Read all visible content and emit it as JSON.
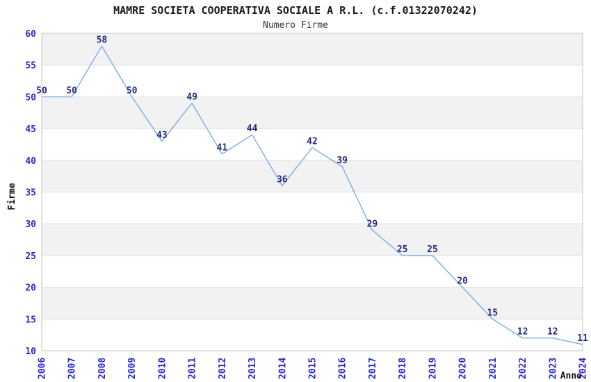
{
  "header": {
    "title": "MAMRE SOCIETA COOPERATIVA SOCIALE A R.L. (c.f.01322070242)",
    "subtitle": "Numero Firme"
  },
  "chart_data": {
    "type": "line",
    "title": "MAMRE SOCIETA COOPERATIVA SOCIALE A R.L. (c.f.01322070242)",
    "subtitle": "Numero Firme",
    "xlabel": "Anno",
    "ylabel": "Firme",
    "x": [
      2006,
      2007,
      2008,
      2009,
      2010,
      2011,
      2012,
      2013,
      2014,
      2015,
      2016,
      2017,
      2018,
      2019,
      2020,
      2021,
      2022,
      2023,
      2024
    ],
    "values": [
      50,
      50,
      58,
      50,
      43,
      49,
      41,
      44,
      36,
      42,
      39,
      29,
      25,
      25,
      20,
      15,
      12,
      12,
      11
    ],
    "ylim": [
      10,
      60
    ],
    "ytick_step": 5,
    "y_ticks": [
      10,
      15,
      20,
      25,
      30,
      35,
      40,
      45,
      50,
      55,
      60
    ],
    "grid": true,
    "legend_position": "none",
    "data_labels_shown": true,
    "colors": {
      "line": "#78ace4",
      "tick_label": "#2828cc",
      "data_label": "#28287d",
      "band_fill": "#f2f2f2",
      "grid_line": "#dedede",
      "plot_border": "#c4c4c4",
      "title": "#1a1a1a",
      "subtitle": "#333333",
      "axis_title": "#111111",
      "background": "#ffffff"
    }
  }
}
